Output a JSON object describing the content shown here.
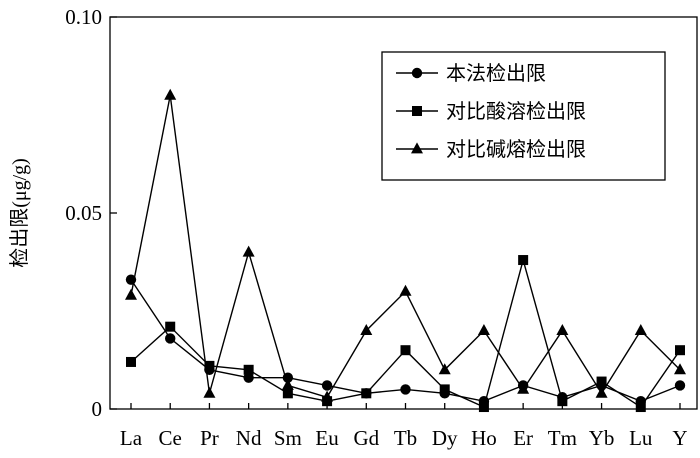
{
  "chart_data": {
    "type": "line",
    "title": "",
    "xlabel": "",
    "ylabel": "检出限(μg/g)",
    "ylim": [
      0,
      0.1
    ],
    "yticks": [
      {
        "value": 0,
        "label": "0"
      },
      {
        "value": 0.05,
        "label": "0.05"
      },
      {
        "value": 0.1,
        "label": "0.10"
      }
    ],
    "grid": false,
    "legend_position": "top-right",
    "categories": [
      "La",
      "Ce",
      "Pr",
      "Nd",
      "Sm",
      "Eu",
      "Gd",
      "Tb",
      "Dy",
      "Ho",
      "Er",
      "Tm",
      "Yb",
      "Lu",
      "Y"
    ],
    "series": [
      {
        "name": "本法检出限",
        "marker": "circle",
        "color": "#000000",
        "values": [
          0.033,
          0.018,
          0.01,
          0.008,
          0.008,
          0.006,
          0.004,
          0.005,
          0.004,
          0.002,
          0.006,
          0.003,
          0.006,
          0.002,
          0.006
        ]
      },
      {
        "name": "对比酸溶检出限",
        "marker": "square",
        "color": "#000000",
        "values": [
          0.012,
          0.021,
          0.011,
          0.01,
          0.004,
          0.002,
          0.004,
          0.015,
          0.005,
          0.0005,
          0.038,
          0.002,
          0.007,
          0.0005,
          0.015
        ]
      },
      {
        "name": "对比碱熔检出限",
        "marker": "triangle",
        "color": "#000000",
        "values": [
          0.029,
          0.08,
          0.004,
          0.04,
          0.006,
          0.003,
          0.02,
          0.03,
          0.01,
          0.02,
          0.005,
          0.02,
          0.004,
          0.02,
          0.01
        ]
      }
    ]
  }
}
